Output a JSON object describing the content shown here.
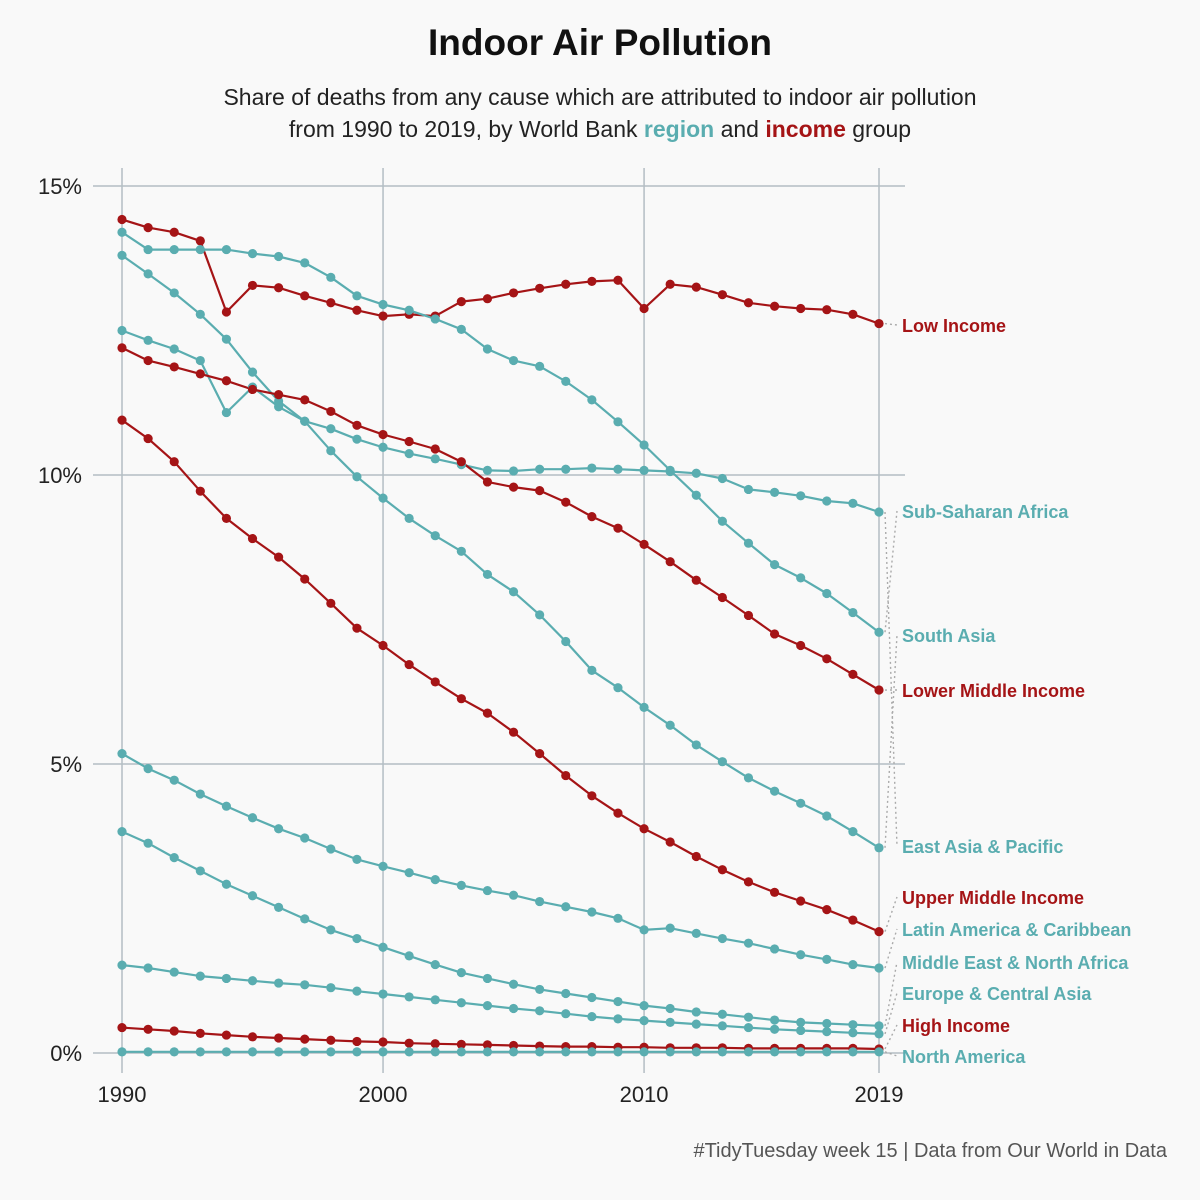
{
  "title": "Indoor Air Pollution",
  "subtitle_line1": "Share of deaths from any cause which are attributed to indoor air pollution",
  "subtitle_line2_pre": "from 1990 to 2019, by World Bank ",
  "subtitle_kw_region": "region",
  "subtitle_mid": " and ",
  "subtitle_kw_income": "income",
  "subtitle_post": " group",
  "caption": "#TidyTuesday week 15 | Data from Our World in Data",
  "colors": {
    "region": "#5aadb0",
    "income": "#a51416",
    "grid": "#b4bec4",
    "background": "#f9f9f9"
  },
  "chart_data": {
    "type": "line",
    "title": "Indoor Air Pollution",
    "xlabel": "",
    "ylabel": "",
    "xlim": [
      1990,
      2019
    ],
    "ylim": [
      0,
      15
    ],
    "x_ticks": [
      1990,
      2000,
      2010,
      2019
    ],
    "x_tick_labels": [
      "1990",
      "2000",
      "2010",
      "2019"
    ],
    "y_ticks": [
      0,
      5,
      10,
      15
    ],
    "y_tick_labels": [
      "0%",
      "5%",
      "10%",
      "15%"
    ],
    "grid": true,
    "legend": "direct labels at right end of lines",
    "x": [
      1990,
      1991,
      1992,
      1993,
      1994,
      1995,
      1996,
      1997,
      1998,
      1999,
      2000,
      2001,
      2002,
      2003,
      2004,
      2005,
      2006,
      2007,
      2008,
      2009,
      2010,
      2011,
      2012,
      2013,
      2014,
      2015,
      2016,
      2017,
      2018,
      2019
    ],
    "series": [
      {
        "name": "Low Income",
        "group": "income",
        "values": [
          14.42,
          14.28,
          14.2,
          14.05,
          12.82,
          13.28,
          13.24,
          13.1,
          12.98,
          12.85,
          12.75,
          12.78,
          12.75,
          13.0,
          13.05,
          13.15,
          13.23,
          13.3,
          13.35,
          13.37,
          12.88,
          13.3,
          13.25,
          13.12,
          12.98,
          12.92,
          12.88,
          12.86,
          12.78,
          12.62
        ]
      },
      {
        "name": "Sub-Saharan Africa",
        "group": "region",
        "values": [
          14.2,
          13.9,
          13.9,
          13.9,
          13.9,
          13.83,
          13.78,
          13.67,
          13.42,
          13.1,
          12.95,
          12.85,
          12.7,
          12.52,
          12.18,
          11.98,
          11.88,
          11.62,
          11.3,
          10.92,
          10.52,
          10.08,
          9.65,
          9.2,
          8.82,
          8.45,
          8.22,
          7.95,
          7.62,
          7.28
        ]
      },
      {
        "name": "South Asia",
        "group": "region",
        "values": [
          13.8,
          13.48,
          13.15,
          12.78,
          12.35,
          11.78,
          11.28,
          10.93,
          10.42,
          9.97,
          9.6,
          9.25,
          8.95,
          8.68,
          8.28,
          7.98,
          7.58,
          7.12,
          6.62,
          6.32,
          5.98,
          5.67,
          5.33,
          5.04,
          4.76,
          4.53,
          4.32,
          4.1,
          3.83,
          3.55
        ]
      },
      {
        "name": "East Asia & Pacific",
        "group": "region",
        "values": [
          12.5,
          12.33,
          12.18,
          11.98,
          11.08,
          11.52,
          11.18,
          10.93,
          10.8,
          10.62,
          10.48,
          10.37,
          10.28,
          10.18,
          10.08,
          10.07,
          10.1,
          10.1,
          10.12,
          10.1,
          10.08,
          10.06,
          10.03,
          9.94,
          9.75,
          9.7,
          9.64,
          9.55,
          9.51,
          9.36
        ]
      },
      {
        "name": "Lower Middle Income",
        "group": "income",
        "values": [
          12.2,
          11.98,
          11.87,
          11.75,
          11.63,
          11.48,
          11.39,
          11.3,
          11.1,
          10.86,
          10.7,
          10.58,
          10.45,
          10.23,
          9.88,
          9.79,
          9.73,
          9.53,
          9.28,
          9.08,
          8.8,
          8.5,
          8.18,
          7.88,
          7.57,
          7.25,
          7.05,
          6.82,
          6.55,
          6.28
        ]
      },
      {
        "name": "Upper Middle Income",
        "group": "income",
        "values": [
          10.95,
          10.63,
          10.23,
          9.72,
          9.25,
          8.9,
          8.58,
          8.2,
          7.78,
          7.35,
          7.05,
          6.72,
          6.42,
          6.13,
          5.88,
          5.55,
          5.18,
          4.8,
          4.45,
          4.15,
          3.88,
          3.65,
          3.4,
          3.17,
          2.96,
          2.78,
          2.63,
          2.48,
          2.3,
          2.1
        ]
      },
      {
        "name": "Latin America & Caribbean",
        "group": "region",
        "values": [
          5.18,
          4.92,
          4.72,
          4.48,
          4.27,
          4.07,
          3.88,
          3.72,
          3.53,
          3.35,
          3.23,
          3.12,
          3.0,
          2.9,
          2.81,
          2.73,
          2.62,
          2.53,
          2.44,
          2.33,
          2.13,
          2.16,
          2.07,
          1.98,
          1.9,
          1.8,
          1.7,
          1.62,
          1.53,
          1.47
        ]
      },
      {
        "name": "Middle East & North Africa",
        "group": "region",
        "values": [
          3.83,
          3.63,
          3.38,
          3.15,
          2.92,
          2.72,
          2.52,
          2.32,
          2.13,
          1.98,
          1.83,
          1.68,
          1.53,
          1.39,
          1.29,
          1.19,
          1.1,
          1.03,
          0.96,
          0.89,
          0.82,
          0.77,
          0.71,
          0.67,
          0.62,
          0.57,
          0.53,
          0.51,
          0.49,
          0.47
        ]
      },
      {
        "name": "Europe & Central Asia",
        "group": "region",
        "values": [
          1.52,
          1.47,
          1.4,
          1.33,
          1.29,
          1.25,
          1.21,
          1.18,
          1.13,
          1.07,
          1.02,
          0.97,
          0.92,
          0.87,
          0.82,
          0.77,
          0.73,
          0.68,
          0.63,
          0.59,
          0.56,
          0.53,
          0.5,
          0.47,
          0.44,
          0.41,
          0.39,
          0.37,
          0.35,
          0.33
        ]
      },
      {
        "name": "High Income",
        "group": "income",
        "values": [
          0.44,
          0.41,
          0.38,
          0.34,
          0.31,
          0.28,
          0.26,
          0.24,
          0.22,
          0.2,
          0.19,
          0.17,
          0.16,
          0.15,
          0.14,
          0.13,
          0.12,
          0.11,
          0.11,
          0.1,
          0.1,
          0.09,
          0.09,
          0.09,
          0.08,
          0.08,
          0.08,
          0.08,
          0.08,
          0.07
        ]
      },
      {
        "name": "North America",
        "group": "region",
        "values": [
          0.02,
          0.02,
          0.02,
          0.02,
          0.02,
          0.02,
          0.02,
          0.02,
          0.02,
          0.02,
          0.02,
          0.02,
          0.02,
          0.02,
          0.02,
          0.02,
          0.02,
          0.02,
          0.02,
          0.02,
          0.02,
          0.02,
          0.02,
          0.02,
          0.02,
          0.02,
          0.02,
          0.02,
          0.02,
          0.02
        ]
      }
    ]
  }
}
